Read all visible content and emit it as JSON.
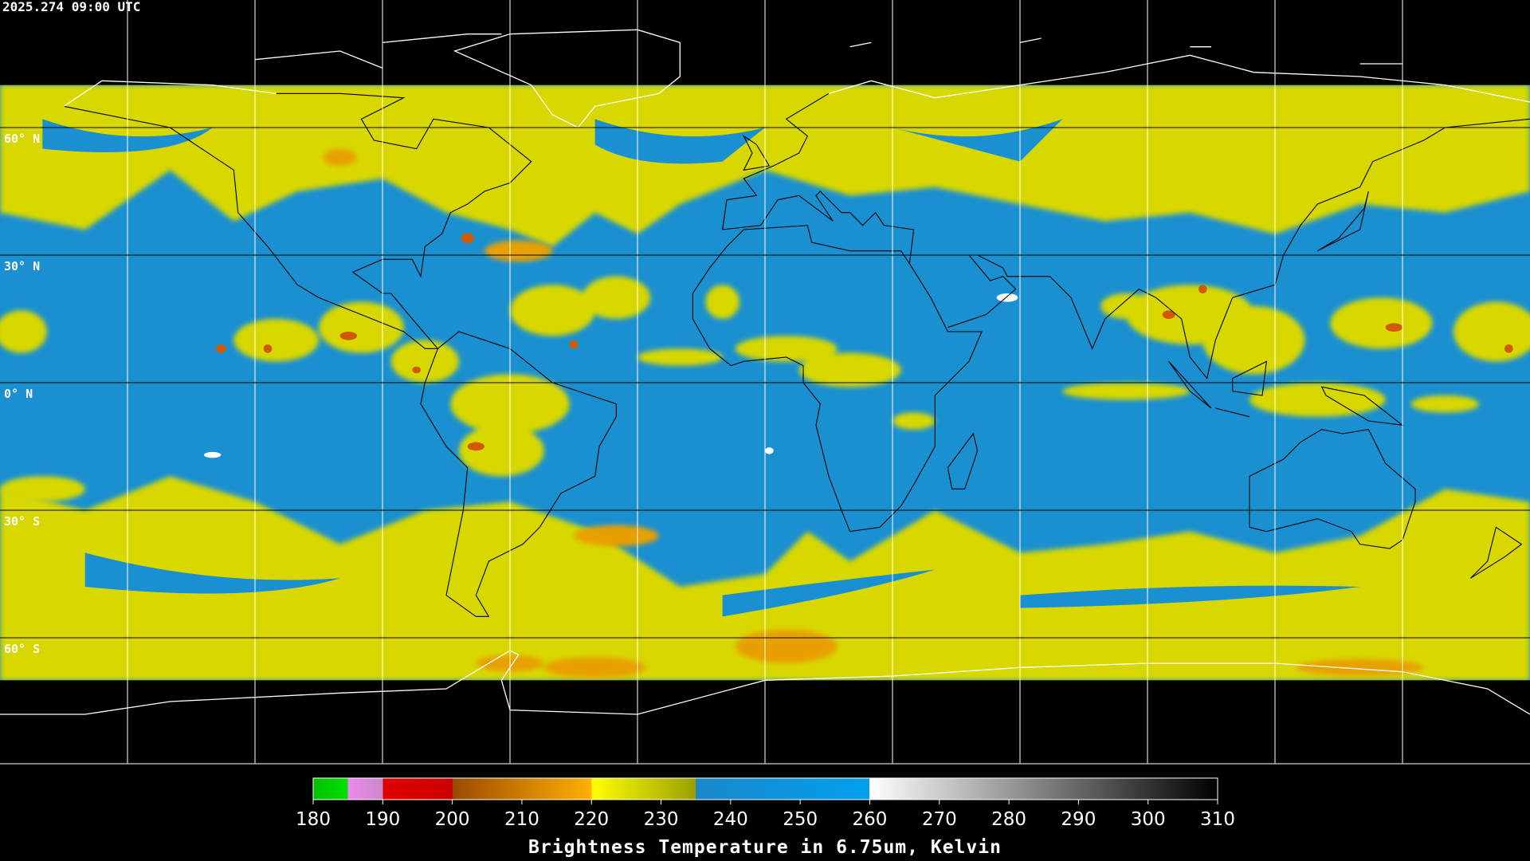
{
  "header": {
    "timestamp": "2025.274 09:00 UTC"
  },
  "map": {
    "lat_labels": [
      "60° N",
      "30° N",
      "0° N",
      "30° S",
      "60° S"
    ]
  },
  "colorbar": {
    "range": [
      180,
      310
    ],
    "ticks": [
      180,
      190,
      200,
      210,
      220,
      230,
      240,
      250,
      260,
      270,
      280,
      290,
      300,
      310
    ],
    "label": "Brightness Temperature in 6.75um, Kelvin"
  }
}
